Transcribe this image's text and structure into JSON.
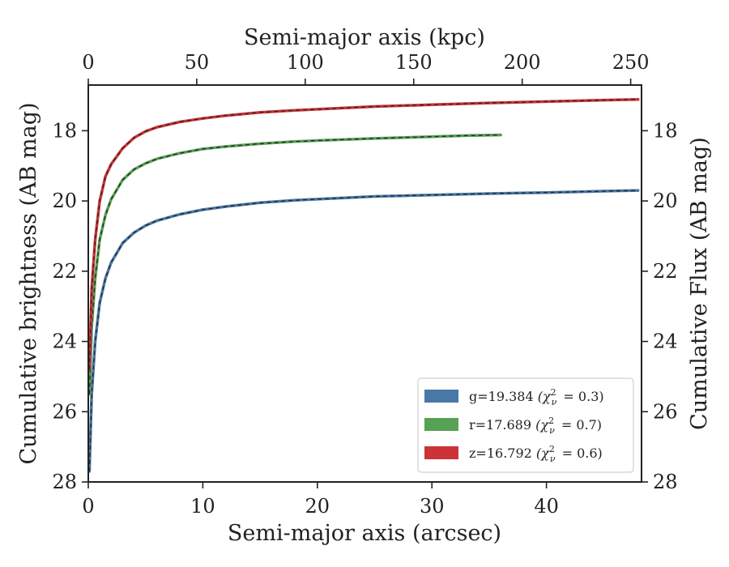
{
  "chart_data": {
    "type": "line",
    "xlabel": "Semi-major axis (arcsec)",
    "x2label": "Semi-major axis (kpc)",
    "ylabel": "Cumulative brightness (AB mag)",
    "y2label": "Cumulative Flux (AB mag)",
    "xlim": [
      0,
      48.3
    ],
    "x2lim": [
      0,
      255
    ],
    "ylim": [
      28,
      16.7
    ],
    "y_inverted": true,
    "xticks": [
      0,
      10,
      20,
      30,
      40
    ],
    "x2ticks": [
      0,
      50,
      100,
      150,
      200,
      250
    ],
    "yticks": [
      18,
      20,
      22,
      24,
      26,
      28
    ],
    "legend_position": "lower-right",
    "series": [
      {
        "name": "g=19.384",
        "chi_label": "(χ",
        "chi_sub": "ν",
        "chi_sup": "2",
        "chi_value": "= 0.3)",
        "color": "#4878a6",
        "x": [
          0.1,
          0.3,
          0.6,
          1.0,
          1.5,
          2.0,
          3.0,
          4.0,
          5.0,
          6.0,
          8.0,
          10.0,
          12.0,
          15.0,
          18.0,
          20.0,
          25.0,
          30.0,
          35.0,
          40.0,
          45.0,
          48.0
        ],
        "y": [
          27.7,
          25.5,
          24.0,
          22.9,
          22.2,
          21.75,
          21.2,
          20.9,
          20.7,
          20.56,
          20.38,
          20.25,
          20.16,
          20.05,
          19.98,
          19.95,
          19.87,
          19.83,
          19.79,
          19.76,
          19.72,
          19.7
        ]
      },
      {
        "name": "r=17.689",
        "chi_label": "(χ",
        "chi_sub": "ν",
        "chi_sup": "2",
        "chi_value": "= 0.7)",
        "color": "#57a155",
        "x": [
          0.1,
          0.3,
          0.6,
          1.0,
          1.5,
          2.0,
          3.0,
          4.0,
          5.0,
          6.0,
          8.0,
          10.0,
          12.0,
          15.0,
          18.0,
          20.0,
          25.0,
          30.0,
          33.0,
          36.0
        ],
        "y": [
          25.5,
          23.6,
          22.2,
          21.1,
          20.4,
          19.95,
          19.4,
          19.1,
          18.93,
          18.8,
          18.64,
          18.52,
          18.45,
          18.37,
          18.31,
          18.28,
          18.22,
          18.17,
          18.14,
          18.12
        ]
      },
      {
        "name": "z=16.792",
        "chi_label": "(χ",
        "chi_sub": "ν",
        "chi_sup": "2",
        "chi_value": "= 0.6)",
        "color": "#cc3336",
        "x": [
          0.1,
          0.3,
          0.6,
          1.0,
          1.5,
          2.0,
          3.0,
          4.0,
          5.0,
          6.0,
          8.0,
          10.0,
          12.0,
          15.0,
          18.0,
          20.0,
          25.0,
          30.0,
          35.0,
          40.0,
          45.0,
          48.0
        ],
        "y": [
          24.8,
          22.5,
          21.1,
          20.0,
          19.3,
          18.95,
          18.5,
          18.2,
          18.02,
          17.9,
          17.75,
          17.65,
          17.57,
          17.48,
          17.42,
          17.39,
          17.31,
          17.26,
          17.21,
          17.17,
          17.13,
          17.11
        ]
      }
    ]
  }
}
